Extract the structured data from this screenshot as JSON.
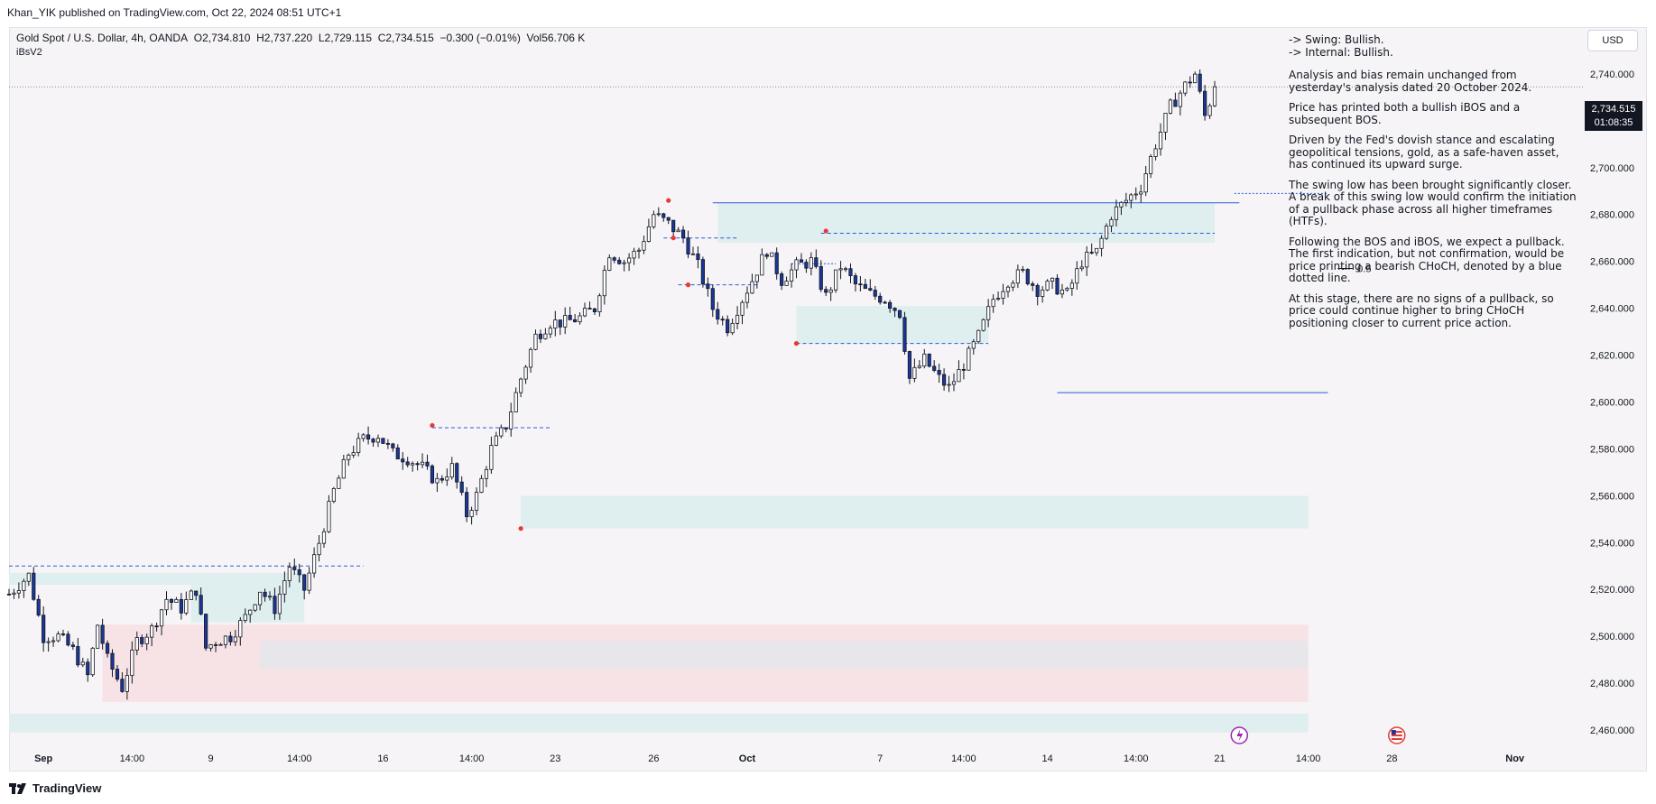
{
  "header": {
    "publisher_line": "Khan_YIK published on TradingView.com, Oct 22, 2024 08:51 UTC+1"
  },
  "legend": {
    "symbol": "Gold Spot / U.S. Dollar, 4h, OANDA",
    "open": "O2,734.810",
    "high": "H2,737.220",
    "low": "L2,729.115",
    "close": "C2,734.515",
    "change": "−0.300 (−0.01%)",
    "volume": "Vol56.706 K",
    "indicator": "iBsV2"
  },
  "currency_button": "USD",
  "current_price": {
    "price": "2,734.515",
    "countdown": "01:08:35"
  },
  "fib_label": "0.5",
  "notes": [
    "-> Swing:  Bullish.",
    "-> Internal:  Bullish.",
    "Analysis and bias remain unchanged from yesterday's analysis dated 20 October 2024.",
    "Price has printed both a bullish iBOS and a subsequent BOS.",
    "Driven by the Fed's dovish stance and escalating geopolitical tensions, gold, as a safe-haven asset, has continued its upward surge.",
    "The swing low has been brought significantly closer. A break of this swing low would confirm the initiation of a pullback phase across all higher timeframes (HTFs).",
    "Following the BOS and iBOS, we expect a pullback. The first indication, but not confirmation, would be price printing a bearish CHoCH, denoted by a blue dotted line.",
    "At this stage, there are no signs of a pullback, so price could continue higher to bring CHoCH positioning closer to current price action."
  ],
  "footer": {
    "brand": "TradingView"
  },
  "colors": {
    "bull": "#ffffff",
    "bear": "#1a3799",
    "wick": "#131722",
    "demand_zone": "#dfeeee",
    "supply_zone": "#f7e3e6",
    "structure_line": "#2a5bd7"
  },
  "chart_data": {
    "type": "candlestick",
    "title": "Gold Spot / U.S. Dollar, 4h, OANDA",
    "ylim": [
      2450,
      2760
    ],
    "y_ticks": [
      "2,460.000",
      "2,480.000",
      "2,500.000",
      "2,520.000",
      "2,540.000",
      "2,560.000",
      "2,580.000",
      "2,600.000",
      "2,620.000",
      "2,640.000",
      "2,660.000",
      "2,680.000",
      "2,700.000",
      "2,720.000",
      "2,740.000"
    ],
    "y_tick_values": [
      2460,
      2480,
      2500,
      2520,
      2540,
      2560,
      2580,
      2600,
      2620,
      2640,
      2660,
      2680,
      2700,
      2720,
      2740
    ],
    "x_ticks": [
      {
        "label": "Sep",
        "bold": true,
        "i": 7
      },
      {
        "label": "14:00",
        "i": 25
      },
      {
        "label": "9",
        "i": 41
      },
      {
        "label": "14:00",
        "i": 59
      },
      {
        "label": "16",
        "i": 76
      },
      {
        "label": "14:00",
        "i": 94
      },
      {
        "label": "23",
        "i": 111
      },
      {
        "label": "26",
        "i": 131
      },
      {
        "label": "Oct",
        "bold": true,
        "i": 150
      },
      {
        "label": "7",
        "i": 177
      },
      {
        "label": "14:00",
        "i": 194
      },
      {
        "label": "14",
        "i": 211
      },
      {
        "label": "14:00",
        "i": 229
      },
      {
        "label": "21",
        "i": 246
      },
      {
        "label": "14:00",
        "i": 264
      },
      {
        "label": "28",
        "i": 281
      },
      {
        "label": "Nov",
        "bold": true,
        "i": 306
      }
    ],
    "index_range": [
      0,
      320
    ],
    "anchors": [
      [
        0,
        2518
      ],
      [
        4,
        2526
      ],
      [
        7,
        2500
      ],
      [
        10,
        2500
      ],
      [
        13,
        2494
      ],
      [
        16,
        2483
      ],
      [
        18,
        2505
      ],
      [
        20,
        2490
      ],
      [
        23,
        2478
      ],
      [
        26,
        2498
      ],
      [
        29,
        2503
      ],
      [
        32,
        2516
      ],
      [
        35,
        2512
      ],
      [
        38,
        2520
      ],
      [
        40,
        2495
      ],
      [
        42,
        2498
      ],
      [
        45,
        2500
      ],
      [
        48,
        2508
      ],
      [
        51,
        2520
      ],
      [
        54,
        2512
      ],
      [
        57,
        2530
      ],
      [
        60,
        2520
      ],
      [
        63,
        2540
      ],
      [
        66,
        2562
      ],
      [
        69,
        2578
      ],
      [
        72,
        2584
      ],
      [
        75,
        2586
      ],
      [
        78,
        2578
      ],
      [
        81,
        2576
      ],
      [
        84,
        2572
      ],
      [
        87,
        2566
      ],
      [
        90,
        2572
      ],
      [
        93,
        2552
      ],
      [
        95,
        2560
      ],
      [
        98,
        2580
      ],
      [
        101,
        2590
      ],
      [
        104,
        2610
      ],
      [
        107,
        2628
      ],
      [
        110,
        2634
      ],
      [
        113,
        2634
      ],
      [
        116,
        2636
      ],
      [
        119,
        2640
      ],
      [
        122,
        2664
      ],
      [
        125,
        2660
      ],
      [
        128,
        2665
      ],
      [
        131,
        2680
      ],
      [
        134,
        2676
      ],
      [
        137,
        2670
      ],
      [
        140,
        2658
      ],
      [
        143,
        2640
      ],
      [
        146,
        2632
      ],
      [
        148,
        2640
      ],
      [
        151,
        2652
      ],
      [
        154,
        2665
      ],
      [
        157,
        2652
      ],
      [
        160,
        2658
      ],
      [
        163,
        2660
      ],
      [
        166,
        2645
      ],
      [
        169,
        2658
      ],
      [
        172,
        2650
      ],
      [
        175,
        2646
      ],
      [
        178,
        2644
      ],
      [
        181,
        2638
      ],
      [
        183,
        2610
      ],
      [
        186,
        2618
      ],
      [
        189,
        2610
      ],
      [
        191,
        2606
      ],
      [
        194,
        2616
      ],
      [
        197,
        2628
      ],
      [
        200,
        2644
      ],
      [
        203,
        2652
      ],
      [
        206,
        2655
      ],
      [
        209,
        2648
      ],
      [
        212,
        2650
      ],
      [
        215,
        2646
      ],
      [
        218,
        2660
      ],
      [
        221,
        2664
      ],
      [
        224,
        2680
      ],
      [
        227,
        2686
      ],
      [
        230,
        2692
      ],
      [
        233,
        2710
      ],
      [
        236,
        2726
      ],
      [
        239,
        2735
      ],
      [
        241,
        2740
      ],
      [
        243,
        2722
      ],
      [
        245,
        2734
      ]
    ],
    "annotations": {
      "fib_level": 2657,
      "current_price": 2734.515,
      "swing_low": 2604,
      "swing_high": 2685
    }
  }
}
